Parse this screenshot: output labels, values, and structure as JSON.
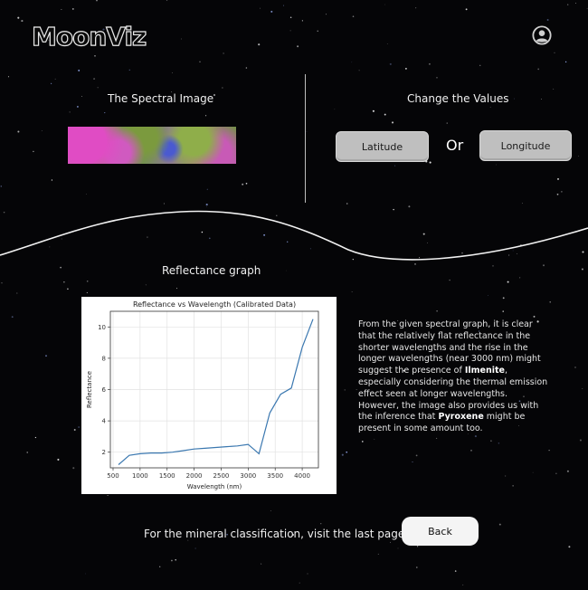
{
  "app": {
    "logo": "MoonViz"
  },
  "header": {
    "user_icon": "user-circle-icon"
  },
  "spectral": {
    "title": "The Spectral Image"
  },
  "controls": {
    "title": "Change the Values",
    "latitude_label": "Latitude",
    "or_label": "Or",
    "longitude_label": "Longitude"
  },
  "reflectance": {
    "title": "Reflectance graph"
  },
  "description": {
    "part1": "From the given spectral graph, it is clear that the relatively flat reflectance in the shorter wavelengths and the rise in the longer wavelengths (near 3000 nm) might suggest the presence of ",
    "mineral1": "Ilmenite",
    "part2": ", especially considering the thermal emission effect seen at longer wavelengths. However, the image also provides us with the inference that ",
    "mineral2": "Pyroxene",
    "part3": " might be present in some amount too."
  },
  "footer": {
    "note": "For the mineral classification, visit the last page",
    "back_label": "Back"
  },
  "colors": {
    "background": "#050507",
    "line": "#3b78b0",
    "button": "#bfbfbf"
  },
  "chart_data": {
    "type": "line",
    "title": "Reflectance vs Wavelength (Calibrated Data)",
    "xlabel": "Wavelength (nm)",
    "ylabel": "Reflectance",
    "xlim": [
      450,
      4300
    ],
    "ylim": [
      1,
      11
    ],
    "xticks": [
      500,
      1000,
      1500,
      2000,
      2500,
      3000,
      3500,
      4000
    ],
    "yticks": [
      2,
      4,
      6,
      8,
      10
    ],
    "grid": true,
    "series": [
      {
        "x": [
          600,
          800,
          1000,
          1200,
          1400,
          1600,
          1800,
          2000,
          2200,
          2400,
          2600,
          2800,
          3000,
          3200,
          3400,
          3600,
          3800,
          4000,
          4200
        ],
        "y": [
          1.2,
          1.8,
          1.9,
          1.95,
          1.95,
          2.0,
          2.1,
          2.2,
          2.25,
          2.3,
          2.35,
          2.4,
          2.5,
          1.9,
          4.5,
          5.7,
          6.1,
          8.7,
          10.5
        ]
      }
    ]
  }
}
